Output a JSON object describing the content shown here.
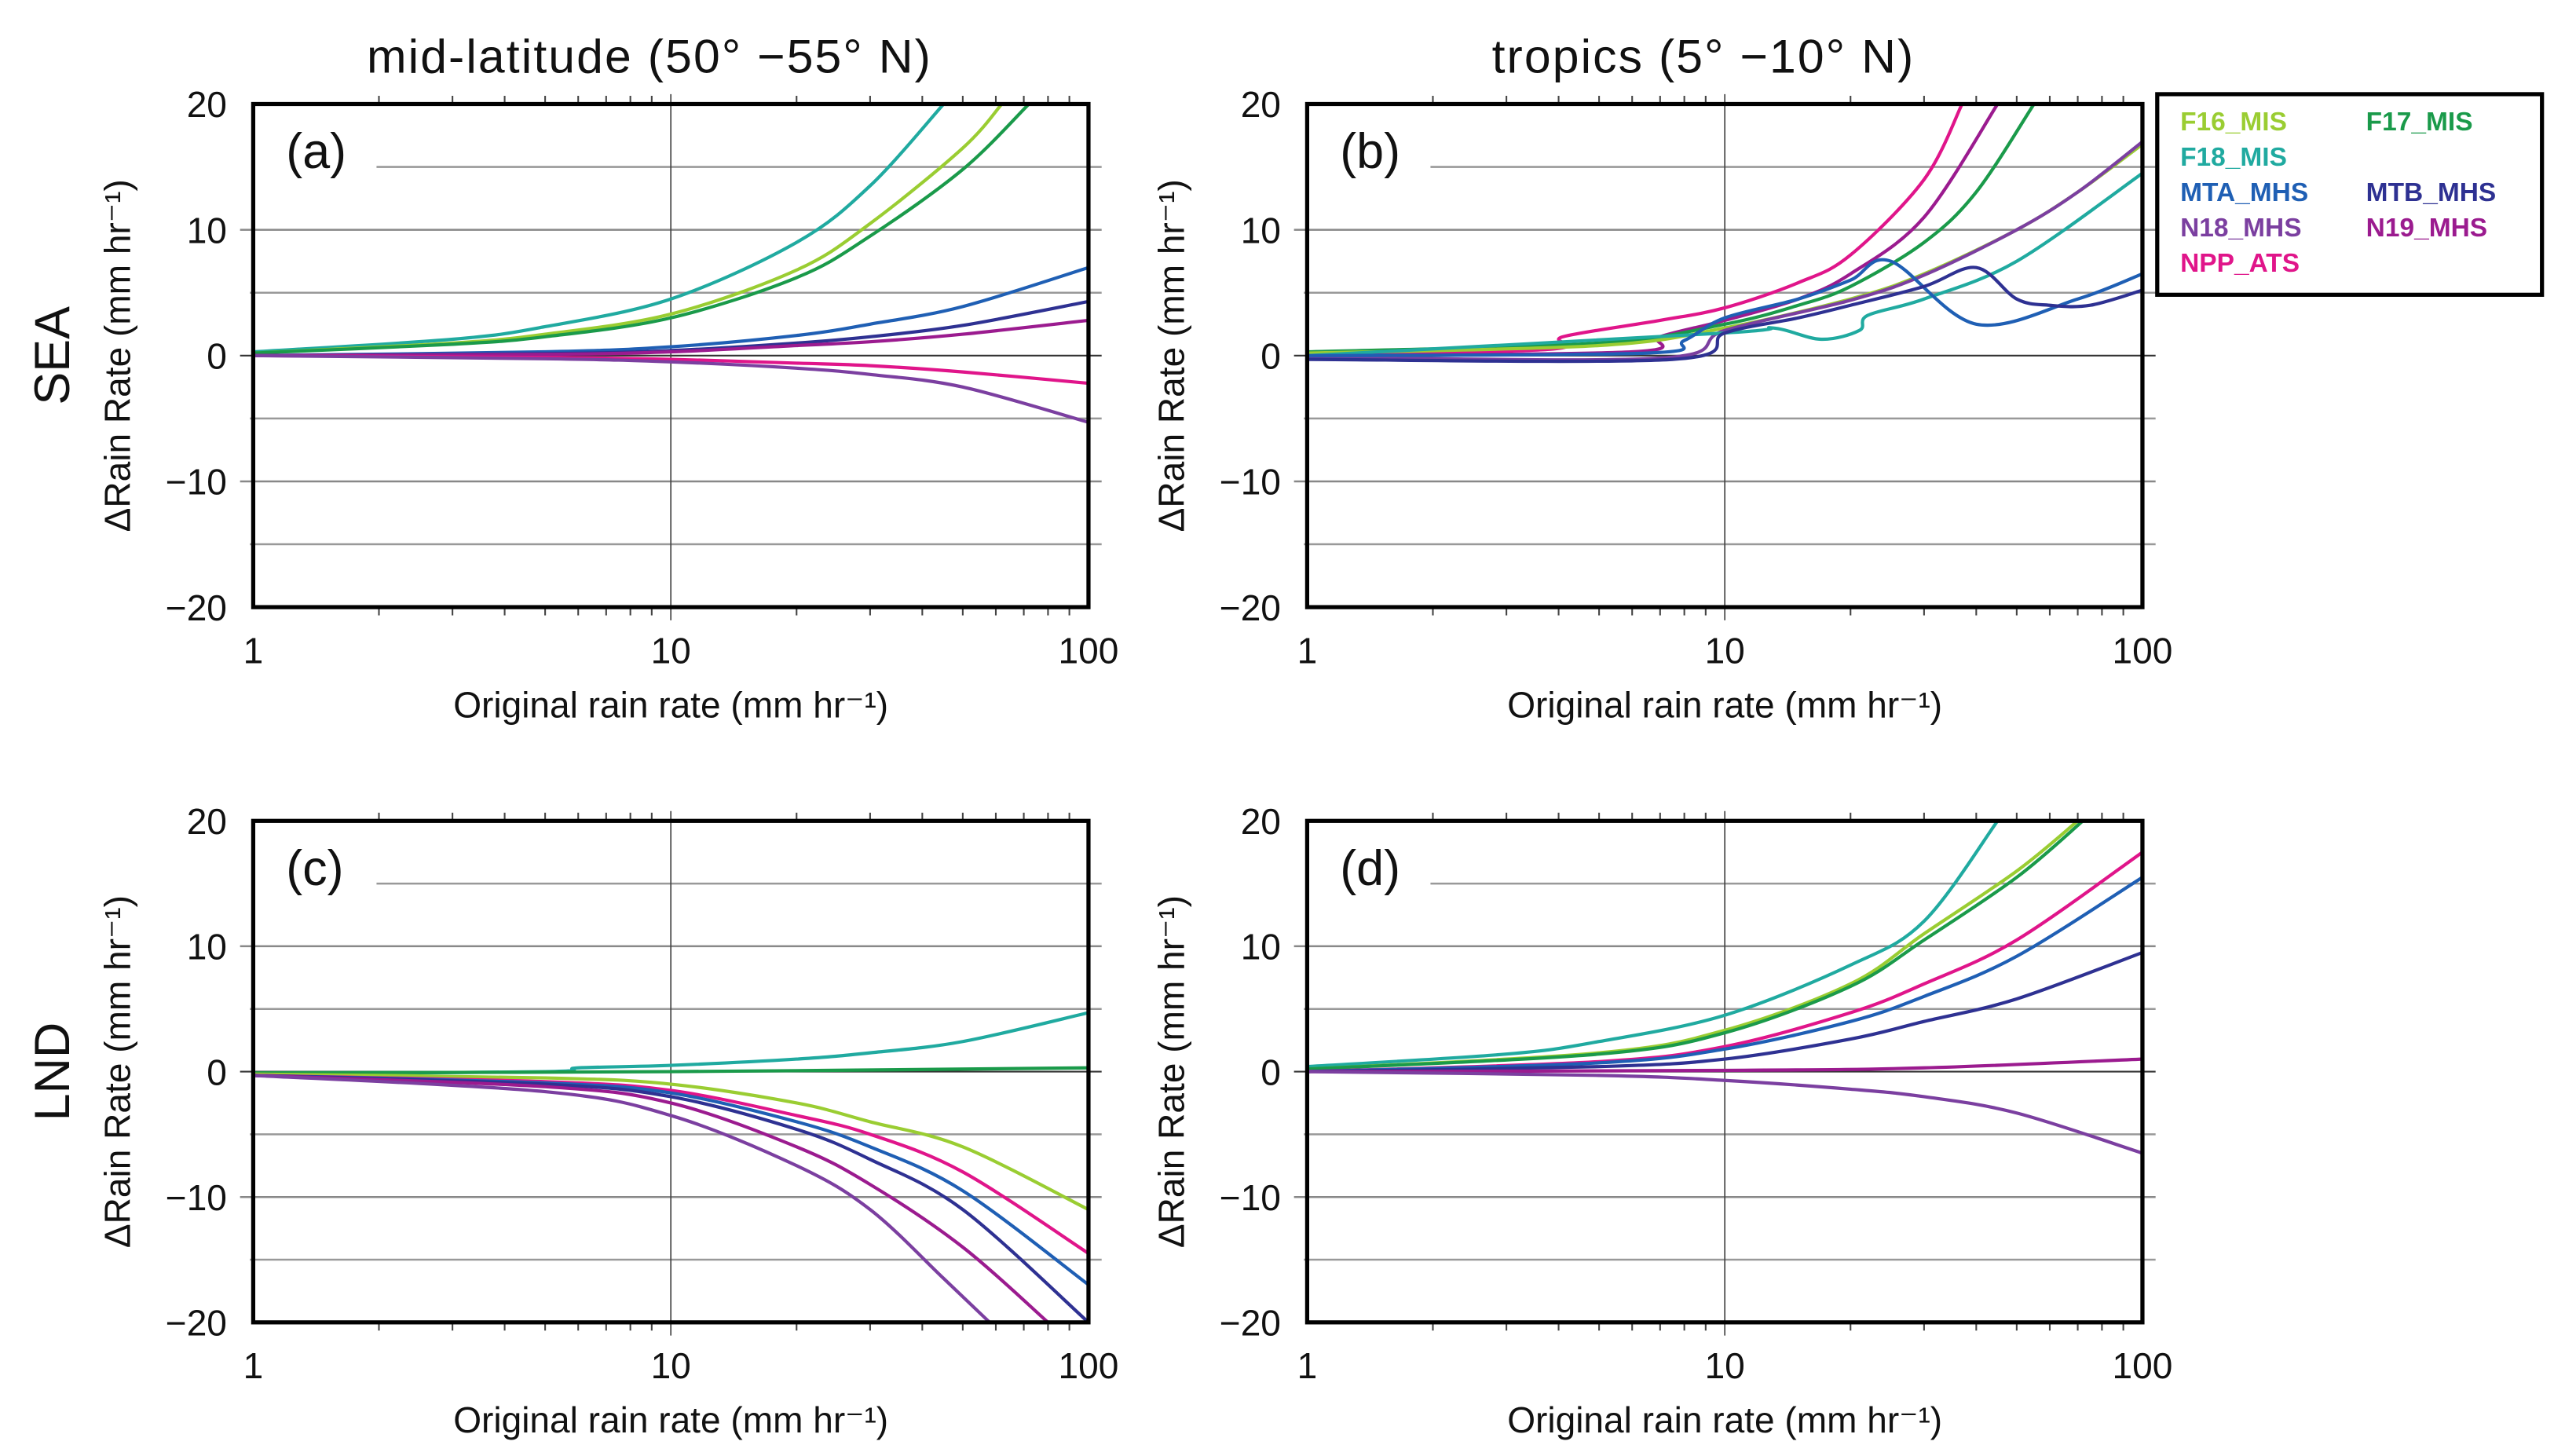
{
  "chart_data": [
    {
      "type": "line",
      "panel": "(a)",
      "title": "mid-latitude (50°  −55°  N)",
      "row_label": "SEA",
      "xlabel": "Original rain rate (mm hr⁻¹)",
      "ylabel": "ΔRain Rate (mm hr⁻¹)",
      "xscale": "log",
      "xlim": [
        1,
        100
      ],
      "ylim": [
        -20,
        20
      ],
      "series": [
        {
          "name": "F18_MIS",
          "x": [
            1,
            3,
            5,
            10,
            20,
            30,
            45
          ],
          "y": [
            0.3,
            1.3,
            2.3,
            4.5,
            9,
            13.5,
            20
          ]
        },
        {
          "name": "F16_MIS",
          "x": [
            1,
            3,
            5,
            10,
            20,
            30,
            50,
            62
          ],
          "y": [
            0.2,
            1,
            1.7,
            3.3,
            6.8,
            10.5,
            16.5,
            20
          ]
        },
        {
          "name": "F17_MIS",
          "x": [
            1,
            3,
            5,
            10,
            20,
            30,
            50,
            72
          ],
          "y": [
            0.2,
            0.9,
            1.5,
            3,
            6.2,
            9.5,
            14.8,
            20
          ]
        },
        {
          "name": "MTA_MHS",
          "x": [
            1,
            5,
            10,
            20,
            30,
            50,
            100
          ],
          "y": [
            0,
            0.3,
            0.7,
            1.6,
            2.5,
            3.9,
            7
          ]
        },
        {
          "name": "MTB_MHS",
          "x": [
            1,
            5,
            10,
            20,
            30,
            50,
            100
          ],
          "y": [
            0,
            0.15,
            0.4,
            1,
            1.5,
            2.4,
            4.3
          ]
        },
        {
          "name": "N19_MHS",
          "x": [
            1,
            5,
            10,
            20,
            30,
            50,
            100
          ],
          "y": [
            0,
            0.1,
            0.3,
            0.8,
            1.1,
            1.7,
            2.8
          ]
        },
        {
          "name": "NPP_ATS",
          "x": [
            1,
            5,
            10,
            20,
            30,
            50,
            100
          ],
          "y": [
            0,
            -0.15,
            -0.3,
            -0.6,
            -0.8,
            -1.3,
            -2.2
          ]
        },
        {
          "name": "N18_MHS",
          "x": [
            1,
            5,
            10,
            20,
            30,
            50,
            100
          ],
          "y": [
            0,
            -0.25,
            -0.5,
            -1,
            -1.5,
            -2.5,
            -5.3
          ]
        }
      ]
    },
    {
      "type": "line",
      "panel": "(b)",
      "title": "tropics (5°  −10°  N)",
      "row_label": "",
      "xlabel": "Original rain rate (mm hr⁻¹)",
      "ylabel": "ΔRain Rate (mm hr⁻¹)",
      "xscale": "log",
      "xlim": [
        1,
        100
      ],
      "ylim": [
        -20,
        20
      ],
      "series": [
        {
          "name": "NPP_ATS",
          "x": [
            1,
            3.8,
            4.1,
            7,
            10,
            15,
            20,
            30,
            37
          ],
          "y": [
            0,
            0.5,
            1.5,
            2.8,
            3.8,
            5.8,
            8,
            14,
            20
          ]
        },
        {
          "name": "N19_MHS",
          "x": [
            1,
            6,
            7,
            10,
            15,
            20,
            30,
            45
          ],
          "y": [
            0,
            0.3,
            1.5,
            2.8,
            4.5,
            6.5,
            11,
            20
          ]
        },
        {
          "name": "F17_MIS",
          "x": [
            1,
            5,
            10,
            15,
            20,
            30,
            40,
            55
          ],
          "y": [
            0.3,
            1,
            2.5,
            4,
            5.5,
            9,
            13,
            20
          ]
        },
        {
          "name": "F16_MIS",
          "x": [
            1,
            5,
            10,
            20,
            30,
            50,
            70,
            100
          ],
          "y": [
            0.2,
            0.8,
            2.2,
            4.5,
            6.5,
            10,
            13,
            16.8
          ]
        },
        {
          "name": "N18_MHS",
          "x": [
            1,
            7,
            10,
            20,
            30,
            50,
            70,
            100
          ],
          "y": [
            -0.1,
            -0.2,
            2,
            4.4,
            6.4,
            10,
            13,
            17
          ]
        },
        {
          "name": "F18_MIS",
          "x": [
            1,
            10,
            13,
            17,
            21,
            22,
            30,
            50,
            100
          ],
          "y": [
            0,
            1.8,
            2.2,
            1.3,
            2,
            3.2,
            4.5,
            7.5,
            14.5
          ]
        },
        {
          "name": "MTA_MHS",
          "x": [
            1,
            6.5,
            8,
            10,
            15,
            20,
            25,
            40,
            70,
            100
          ],
          "y": [
            0,
            0.2,
            1.2,
            3,
            4.5,
            6,
            7.5,
            2.5,
            4.5,
            6.5
          ]
        },
        {
          "name": "MTB_MHS",
          "x": [
            1,
            7.5,
            10,
            15,
            20,
            30,
            40,
            50,
            60,
            75,
            100
          ],
          "y": [
            -0.3,
            -0.3,
            1.8,
            3,
            4,
            5.5,
            7,
            4.5,
            4,
            4,
            5.2
          ]
        }
      ]
    },
    {
      "type": "line",
      "panel": "(c)",
      "title": "",
      "row_label": "LND",
      "xlabel": "Original rain rate (mm hr⁻¹)",
      "ylabel": "ΔRain Rate (mm hr⁻¹)",
      "xscale": "log",
      "xlim": [
        1,
        100
      ],
      "ylim": [
        -20,
        20
      ],
      "series": [
        {
          "name": "F18_MIS",
          "x": [
            1,
            5,
            6,
            10,
            20,
            30,
            50,
            100
          ],
          "y": [
            -0.2,
            0,
            0.3,
            0.5,
            1,
            1.5,
            2.4,
            4.7
          ]
        },
        {
          "name": "F17_MIS",
          "x": [
            1,
            10,
            100
          ],
          "y": [
            -0.1,
            0,
            0.3
          ]
        },
        {
          "name": "F16_MIS",
          "x": [
            1,
            5,
            10,
            20,
            30,
            50,
            100
          ],
          "y": [
            -0.2,
            -0.5,
            -1,
            -2.5,
            -4,
            -6,
            -11
          ]
        },
        {
          "name": "NPP_ATS",
          "x": [
            1,
            5,
            10,
            20,
            30,
            50,
            100
          ],
          "y": [
            -0.3,
            -0.8,
            -1.5,
            -3.5,
            -5,
            -8,
            -14.5
          ]
        },
        {
          "name": "MTA_MHS",
          "x": [
            1,
            5,
            10,
            20,
            30,
            50,
            100
          ],
          "y": [
            -0.3,
            -0.9,
            -1.7,
            -4,
            -6,
            -9.5,
            -17
          ]
        },
        {
          "name": "MTB_MHS",
          "x": [
            1,
            5,
            10,
            20,
            30,
            50,
            100
          ],
          "y": [
            -0.3,
            -1,
            -2,
            -4.6,
            -7,
            -11,
            -20
          ]
        },
        {
          "name": "N19_MHS",
          "x": [
            1,
            5,
            10,
            20,
            30,
            50,
            80
          ],
          "y": [
            -0.3,
            -1.2,
            -2.5,
            -6,
            -9,
            -14,
            -20
          ]
        },
        {
          "name": "N18_MHS",
          "x": [
            1,
            5,
            10,
            20,
            30,
            45,
            58
          ],
          "y": [
            -0.3,
            -1.6,
            -3.5,
            -7.5,
            -11,
            -16.5,
            -20
          ]
        }
      ]
    },
    {
      "type": "line",
      "panel": "(d)",
      "title": "",
      "row_label": "",
      "xlabel": "Original rain rate (mm hr⁻¹)",
      "ylabel": "ΔRain Rate (mm hr⁻¹)",
      "xscale": "log",
      "xlim": [
        1,
        100
      ],
      "ylim": [
        -20,
        20
      ],
      "series": [
        {
          "name": "F18_MIS",
          "x": [
            1,
            3,
            5,
            10,
            20,
            30,
            45
          ],
          "y": [
            0.4,
            1.4,
            2.4,
            4.5,
            8.5,
            12,
            20
          ]
        },
        {
          "name": "F16_MIS",
          "x": [
            1,
            5,
            10,
            20,
            30,
            50,
            70
          ],
          "y": [
            0.2,
            1.5,
            3.3,
            7,
            11,
            16,
            20
          ]
        },
        {
          "name": "F17_MIS",
          "x": [
            1,
            5,
            10,
            20,
            30,
            50,
            72
          ],
          "y": [
            0.2,
            1.4,
            3.1,
            6.8,
            10.5,
            15.5,
            20
          ]
        },
        {
          "name": "NPP_ATS",
          "x": [
            1,
            5,
            10,
            20,
            30,
            50,
            100
          ],
          "y": [
            0,
            0.8,
            2,
            4.7,
            7,
            10.5,
            17.5
          ]
        },
        {
          "name": "MTA_MHS",
          "x": [
            1,
            5,
            10,
            20,
            30,
            50,
            100
          ],
          "y": [
            0,
            0.7,
            1.8,
            4,
            6,
            9.2,
            15.5
          ]
        },
        {
          "name": "MTB_MHS",
          "x": [
            1,
            5,
            10,
            20,
            30,
            50,
            100
          ],
          "y": [
            0,
            0.4,
            1,
            2.6,
            4,
            5.8,
            9.5
          ]
        },
        {
          "name": "N19_MHS",
          "x": [
            1,
            10,
            30,
            100
          ],
          "y": [
            0,
            0.1,
            0.3,
            1
          ]
        },
        {
          "name": "N18_MHS",
          "x": [
            1,
            5,
            10,
            20,
            30,
            50,
            100
          ],
          "y": [
            0,
            -0.3,
            -0.7,
            -1.4,
            -2,
            -3.3,
            -6.5
          ]
        }
      ]
    }
  ],
  "xticks": [
    "1",
    "10",
    "100"
  ],
  "yticks": [
    "20",
    "10",
    "0",
    "−10",
    "−20"
  ],
  "legend": {
    "placement": "right of top-right panel",
    "items": [
      {
        "name": "F16_MIS",
        "color": "#9acd32"
      },
      {
        "name": "F17_MIS",
        "color": "#1a9a4a"
      },
      {
        "name": "F18_MIS",
        "color": "#20aaa0"
      },
      {
        "name": "MTA_MHS",
        "color": "#1f5fb4"
      },
      {
        "name": "MTB_MHS",
        "color": "#2e3192"
      },
      {
        "name": "N18_MHS",
        "color": "#7b3fa0"
      },
      {
        "name": "N19_MHS",
        "color": "#9b1b8f"
      },
      {
        "name": "NPP_ATS",
        "color": "#e0158a"
      }
    ]
  }
}
